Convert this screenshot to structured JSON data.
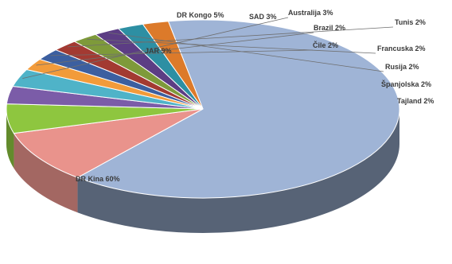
{
  "chart_data": {
    "type": "pie",
    "title": "",
    "slices": [
      {
        "label": "DR Kina 60%",
        "value": 60,
        "color": "#9fb4d6"
      },
      {
        "label": "JAR 9%",
        "value": 9,
        "color": "#e9938c"
      },
      {
        "label": "DR Kongo 5%",
        "value": 5,
        "color": "#8ec63f"
      },
      {
        "label": "SAD 3%",
        "value": 3,
        "color": "#7b5ca8"
      },
      {
        "label": "Australija 3%",
        "value": 3,
        "color": "#4fb3c8"
      },
      {
        "label": "Brazil 2%",
        "value": 2,
        "color": "#f29b3a"
      },
      {
        "label": "Čile 2%",
        "value": 2,
        "color": "#3c5fa0"
      },
      {
        "label": "Tunis 2%",
        "value": 2,
        "color": "#a33a32"
      },
      {
        "label": "Francuska 2%",
        "value": 2,
        "color": "#7e9a3a"
      },
      {
        "label": "Rusija 2%",
        "value": 2,
        "color": "#5c3d84"
      },
      {
        "label": "Španjolska 2%",
        "value": 2,
        "color": "#2d8fa3"
      },
      {
        "label": "Tajland 2%",
        "value": 2,
        "color": "#dc7a2a"
      }
    ]
  }
}
